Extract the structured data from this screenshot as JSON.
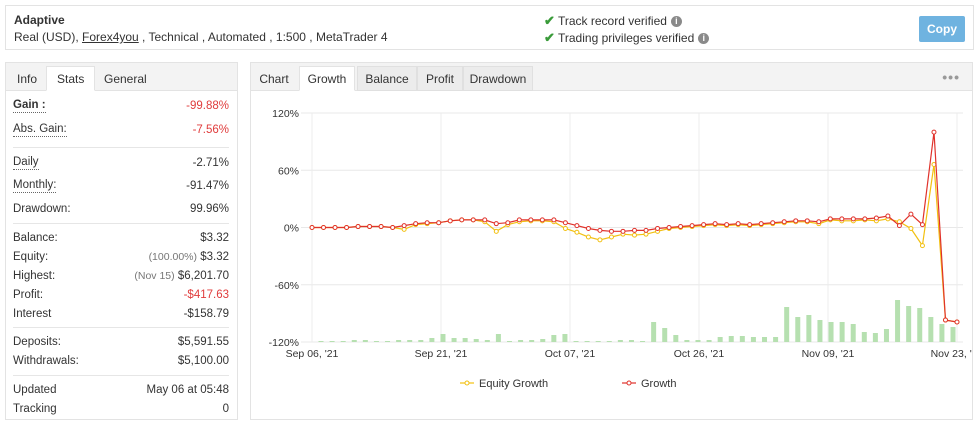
{
  "header": {
    "account_name": "Adaptive",
    "account_type": "Real (USD), ",
    "broker": "Forex4you",
    "account_rest": " , Technical , Automated , 1:500 , MetaTrader 4",
    "verify_track": "Track record verified",
    "verify_trading": "Trading privileges verified",
    "copy_label": "Copy",
    "copy_color": "#6fb3e0"
  },
  "stats_tabs": [
    "Info",
    "Stats",
    "General"
  ],
  "stats": {
    "gain": {
      "label": "Gain :",
      "value": "-99.88%"
    },
    "abs_gain": {
      "label": "Abs. Gain:",
      "value": "-7.56%"
    },
    "daily": {
      "label": "Daily",
      "value": "-2.71%"
    },
    "monthly": {
      "label": "Monthly:",
      "value": "-91.47%"
    },
    "drawdown": {
      "label": "Drawdown:",
      "value": "99.96%"
    },
    "balance": {
      "label": "Balance:",
      "value": "$3.32"
    },
    "equity": {
      "label": "Equity:",
      "sub": "(100.00%)",
      "value": "$3.32"
    },
    "highest": {
      "label": "Highest:",
      "sub": "(Nov 15)",
      "value": "$6,201.70"
    },
    "profit": {
      "label": "Profit:",
      "value": "-$417.63"
    },
    "interest": {
      "label": "Interest",
      "value": "-$158.79"
    },
    "deposits": {
      "label": "Deposits:",
      "value": "$5,591.55"
    },
    "withdrawals": {
      "label": "Withdrawals:",
      "value": "$5,100.00"
    },
    "updated": {
      "label": "Updated",
      "value": "May 06 at 05:48"
    },
    "tracking": {
      "label": "Tracking",
      "value": "0"
    }
  },
  "chart_tabs": {
    "label": "Chart",
    "tabs": [
      "Growth",
      "Balance",
      "Profit",
      "Drawdown"
    ],
    "active": "Growth",
    "more_glyph": "•••"
  },
  "chart_data": {
    "type": "line",
    "ylim": [
      -120,
      120
    ],
    "yticks": [
      120,
      60,
      0,
      -60,
      -120
    ],
    "ytick_labels": [
      "120%",
      "60%",
      "0%",
      "-60%",
      "-120%"
    ],
    "xtick_labels": [
      "Sep 06, '21",
      "Sep 21, '21",
      "Oct 07, '21",
      "Oct 26, '21",
      "Nov 09, '21",
      "Nov 23, '21"
    ],
    "xtick_index": [
      0,
      12,
      24,
      36,
      48,
      60
    ],
    "grid": true,
    "legend_position": "bottom-center",
    "colors": {
      "equity": "#f2c011",
      "growth": "#e0322b",
      "bars": "#b6e0b0"
    },
    "series": [
      {
        "name": "Equity Growth",
        "values": [
          0,
          0,
          0,
          0,
          1,
          1,
          1,
          0,
          -2,
          3,
          4,
          5,
          7,
          8,
          8,
          6,
          -4,
          3,
          6,
          7,
          7,
          6,
          -1,
          -5,
          -10,
          -13,
          -10,
          -7,
          -8,
          -7,
          -4,
          -1,
          0,
          1,
          2,
          3,
          2,
          3,
          2,
          3,
          4,
          5,
          6,
          6,
          4,
          8,
          7,
          7,
          8,
          7,
          9,
          6,
          -1,
          -19,
          66,
          -97,
          -99
        ]
      },
      {
        "name": "Growth",
        "values": [
          0,
          0,
          0,
          0,
          1,
          1,
          1,
          0,
          2,
          4,
          5,
          5,
          7,
          8,
          8,
          8,
          4,
          5,
          8,
          8,
          8,
          8,
          5,
          2,
          -1,
          -3,
          -4,
          -4,
          -3,
          -3,
          -1,
          0,
          1,
          2,
          3,
          4,
          3,
          4,
          3,
          4,
          5,
          6,
          7,
          7,
          6,
          9,
          9,
          9,
          9,
          10,
          12,
          2,
          14,
          3,
          100,
          -97,
          -99
        ]
      },
      {
        "name": "bars",
        "values": [
          1,
          1,
          1,
          2,
          2,
          1,
          1,
          2,
          2,
          2,
          4,
          8,
          4,
          4,
          3,
          2,
          8,
          1,
          2,
          2,
          3,
          7,
          8,
          1,
          1,
          1,
          1,
          2,
          2,
          1,
          20,
          14,
          7,
          2,
          2,
          2,
          5,
          6,
          6,
          5,
          5,
          5,
          35,
          25,
          27,
          22,
          20,
          20,
          18,
          10,
          9,
          13,
          42,
          36,
          34,
          25,
          18,
          15
        ]
      }
    ]
  }
}
